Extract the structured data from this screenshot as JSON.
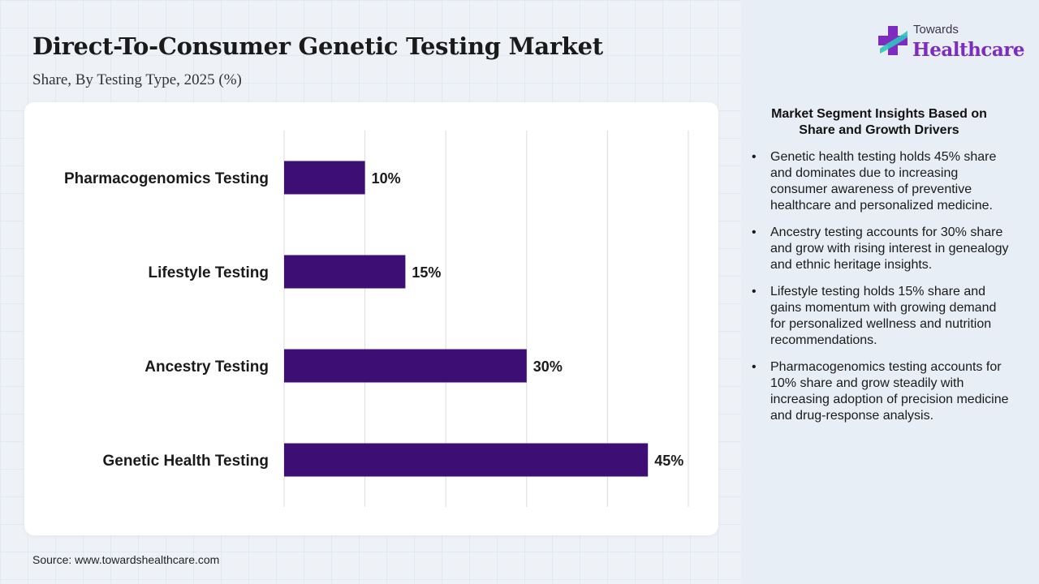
{
  "title": "Direct-To-Consumer Genetic Testing Market",
  "subtitle": "Share, By Testing Type, 2025 (%)",
  "source": "Source: www.towardshealthcare.com",
  "logo": {
    "top": "Towards",
    "main": "Healthcare"
  },
  "colors": {
    "bar": "#3d0e73",
    "logo_purple": "#7e2cc0",
    "logo_teal": "#2fc3c0"
  },
  "insights": {
    "title": "Market Segment Insights Based on Share and Growth Drivers",
    "items": [
      "Genetic health testing holds 45% share and dominates due to increasing consumer awareness of preventive healthcare and personalized medicine.",
      "Ancestry testing accounts for 30% share and grow with rising interest in genealogy and ethnic heritage insights.",
      "Lifestyle testing holds 15% share and gains momentum with growing demand for personalized wellness and nutrition recommendations.",
      "Pharmacogenomics testing accounts for 10% share and grow steadily with increasing adoption of precision medicine and drug-response analysis."
    ]
  },
  "chart_data": {
    "type": "bar",
    "orientation": "horizontal",
    "categories": [
      "Pharmacogenomics Testing",
      "Lifestyle Testing",
      "Ancestry Testing",
      "Genetic Health Testing"
    ],
    "values": [
      10,
      15,
      30,
      45
    ],
    "value_labels": [
      "10%",
      "15%",
      "30%",
      "45%"
    ],
    "xlim": [
      0,
      50
    ],
    "grid": true,
    "legend": "none"
  }
}
